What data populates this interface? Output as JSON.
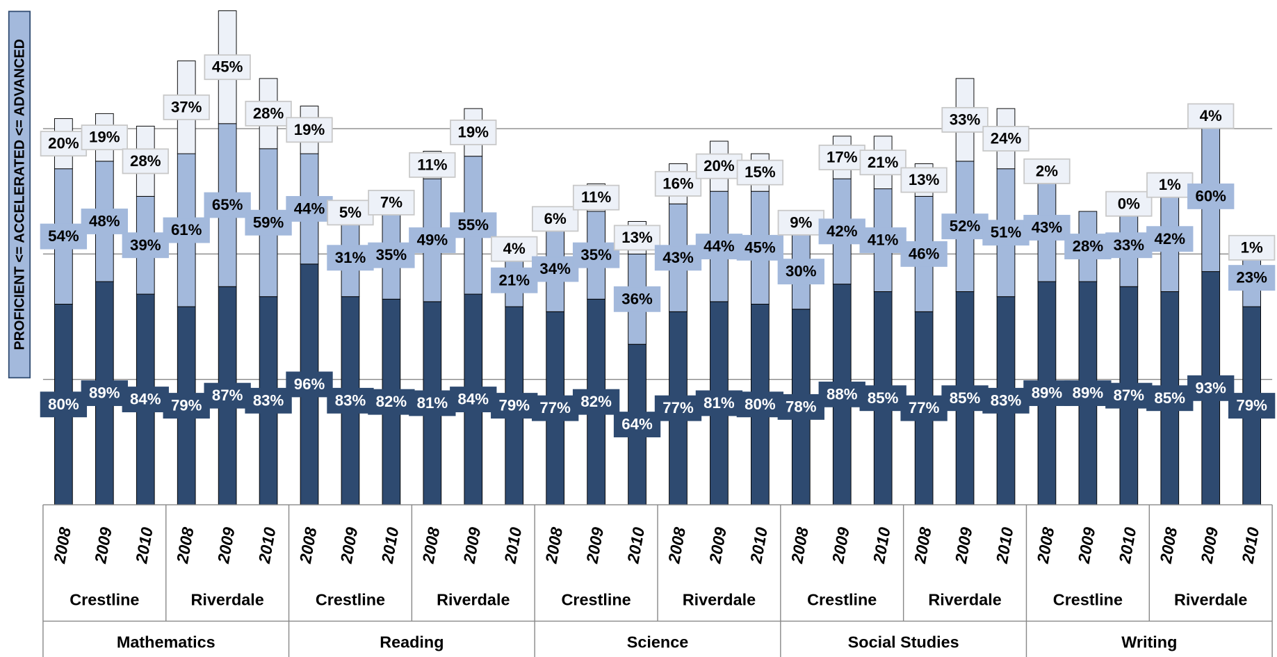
{
  "chart_data": {
    "type": "stacked_bar",
    "y_label": "PROFICIENT <= ACCELERATED <= ADVANCED",
    "categories": [
      "2008",
      "2009",
      "2010",
      "2008",
      "2009",
      "2010",
      "2008",
      "2009",
      "2010",
      "2008",
      "2009",
      "2010",
      "2008",
      "2009",
      "2010",
      "2008",
      "2009",
      "2010",
      "2008",
      "2009",
      "2010",
      "2008",
      "2009",
      "2010",
      "2008",
      "2009",
      "2010",
      "2008",
      "2009",
      "2010"
    ],
    "schools": [
      "Crestline",
      "Riverdale",
      "Crestline",
      "Riverdale",
      "Crestline",
      "Riverdale",
      "Crestline",
      "Riverdale",
      "Crestline",
      "Riverdale"
    ],
    "subjects": [
      "Mathematics",
      "Reading",
      "Science",
      "Social Studies",
      "Writing"
    ],
    "ylim": [
      0,
      200
    ],
    "yticks": [
      50,
      100,
      150
    ],
    "grid": true,
    "series": [
      {
        "color": "#2e4a70",
        "values": [
          80,
          89,
          84,
          79,
          87,
          83,
          96,
          83,
          82,
          81,
          84,
          79,
          77,
          82,
          64,
          77,
          81,
          80,
          78,
          88,
          85,
          77,
          85,
          83,
          89,
          89,
          87,
          85,
          93,
          79
        ],
        "value_labels": [
          "80%",
          "89%",
          "84%",
          "79%",
          "87%",
          "83%",
          "96%",
          "83%",
          "82%",
          "81%",
          "84%",
          "79%",
          "77%",
          "82%",
          "64%",
          "77%",
          "81%",
          "80%",
          "78%",
          "88%",
          "85%",
          "77%",
          "85%",
          "83%",
          "89%",
          "89%",
          "87%",
          "85%",
          "93%",
          "79%"
        ]
      },
      {
        "color": "#a3b9dc",
        "values": [
          54,
          48,
          39,
          61,
          65,
          59,
          44,
          31,
          35,
          49,
          55,
          21,
          34,
          35,
          36,
          43,
          44,
          45,
          30,
          42,
          41,
          46,
          52,
          51,
          43,
          28,
          33,
          42,
          60,
          23
        ],
        "value_labels": [
          "54%",
          "48%",
          "39%",
          "61%",
          "65%",
          "59%",
          "44%",
          "31%",
          "35%",
          "49%",
          "55%",
          "21%",
          "34%",
          "35%",
          "36%",
          "43%",
          "44%",
          "45%",
          "30%",
          "42%",
          "41%",
          "46%",
          "52%",
          "51%",
          "43%",
          "28%",
          "33%",
          "42%",
          "60%",
          "23%"
        ]
      },
      {
        "color": "#edf1f8",
        "values": [
          20,
          19,
          28,
          37,
          45,
          28,
          19,
          5,
          7,
          11,
          19,
          4,
          6,
          11,
          13,
          16,
          20,
          15,
          9,
          17,
          21,
          13,
          33,
          24,
          2,
          null,
          0,
          1,
          4,
          1
        ],
        "value_labels": [
          "20%",
          "19%",
          "28%",
          "37%",
          "45%",
          "28%",
          "19%",
          "5%",
          "7%",
          "11%",
          "19%",
          "4%",
          "6%",
          "11%",
          "13%",
          "16%",
          "20%",
          "15%",
          "9%",
          "17%",
          "21%",
          "13%",
          "33%",
          "24%",
          "2%",
          null,
          "0%",
          "1%",
          "4%",
          "1%"
        ]
      }
    ]
  }
}
